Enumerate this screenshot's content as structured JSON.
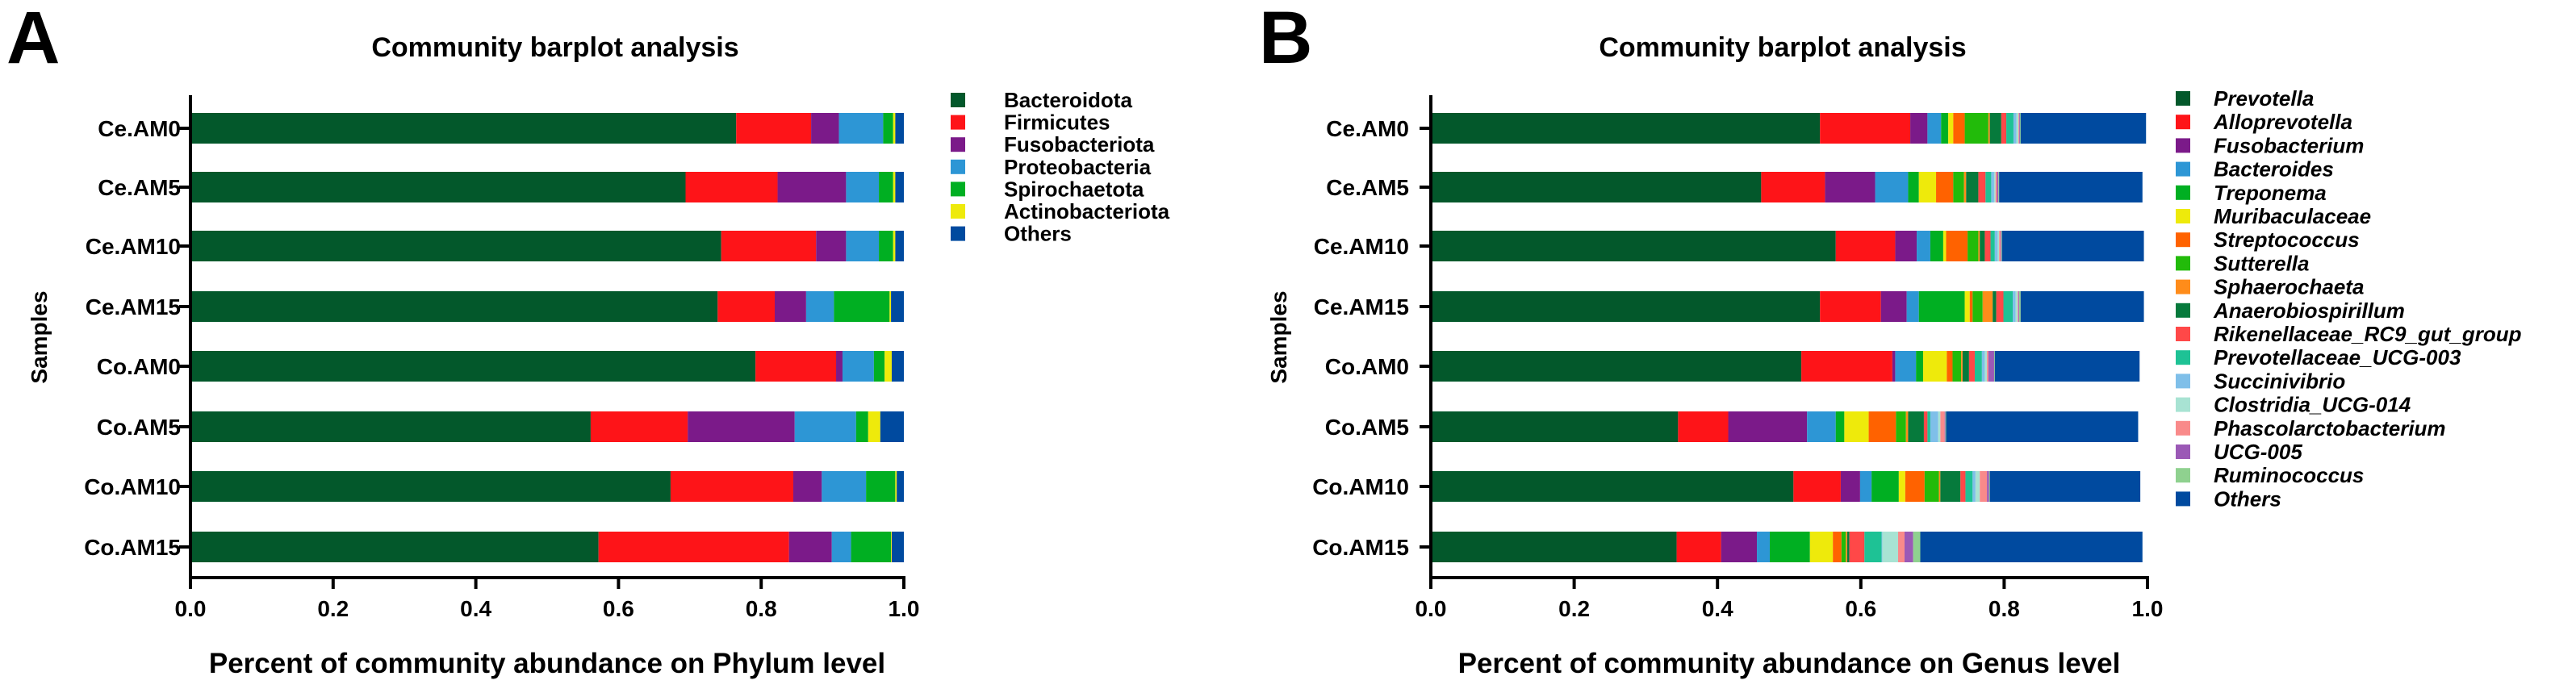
{
  "chart_data": [
    {
      "panel_label": "A",
      "type": "bar",
      "orientation": "horizontal-stacked",
      "title": "Community barplot analysis",
      "xlabel": "Percent of community abundance on Phylum level",
      "ylabel": "Samples",
      "xlim": [
        0,
        1
      ],
      "xticks": [
        "0.0",
        "0.2",
        "0.4",
        "0.6",
        "0.8",
        "1.0"
      ],
      "grid": false,
      "legend_position": "right",
      "legend_italic": false,
      "categories": [
        "Ce.AM0",
        "Ce.AM5",
        "Ce.AM10",
        "Ce.AM15",
        "Co.AM0",
        "Co.AM5",
        "Co.AM10",
        "Co.AM15"
      ],
      "series": [
        {
          "name": "Bacteroidota",
          "color": "#03582b",
          "values": [
            0.765,
            0.694,
            0.744,
            0.739,
            0.792,
            0.561,
            0.673,
            0.572
          ]
        },
        {
          "name": "Firmicutes",
          "color": "#fe1418",
          "values": [
            0.105,
            0.129,
            0.133,
            0.08,
            0.113,
            0.136,
            0.172,
            0.267
          ]
        },
        {
          "name": "Fusobacteriota",
          "color": "#7b1a89",
          "values": [
            0.039,
            0.096,
            0.042,
            0.044,
            0.009,
            0.15,
            0.04,
            0.06
          ]
        },
        {
          "name": "Proteobacteria",
          "color": "#2d96d5",
          "values": [
            0.062,
            0.046,
            0.046,
            0.039,
            0.044,
            0.086,
            0.062,
            0.027
          ]
        },
        {
          "name": "Spirochaetota",
          "color": "#00af22",
          "values": [
            0.014,
            0.02,
            0.02,
            0.078,
            0.015,
            0.017,
            0.041,
            0.056
          ]
        },
        {
          "name": "Actinobacteriota",
          "color": "#eeea0b",
          "values": [
            0.003,
            0.003,
            0.003,
            0.002,
            0.01,
            0.017,
            0.002,
            0.001
          ]
        },
        {
          "name": "Others",
          "color": "#004a9f",
          "values": [
            0.012,
            0.012,
            0.012,
            0.018,
            0.017,
            0.033,
            0.01,
            0.017
          ]
        }
      ]
    },
    {
      "panel_label": "B",
      "type": "bar",
      "orientation": "horizontal-stacked",
      "title": "Community barplot analysis",
      "xlabel": "Percent of community abundance on Genus level",
      "ylabel": "Samples",
      "xlim": [
        0,
        1
      ],
      "xticks": [
        "0.0",
        "0.2",
        "0.4",
        "0.6",
        "0.8",
        "1.0"
      ],
      "grid": false,
      "legend_position": "right",
      "legend_italic": true,
      "categories": [
        "Ce.AM0",
        "Ce.AM5",
        "Ce.AM10",
        "Ce.AM15",
        "Co.AM0",
        "Co.AM5",
        "Co.AM10",
        "Co.AM15"
      ],
      "series": [
        {
          "name": "Prevotella",
          "color": "#03582b",
          "values": [
            0.543,
            0.461,
            0.565,
            0.543,
            0.517,
            0.345,
            0.506,
            0.343
          ]
        },
        {
          "name": "Alloprevotella",
          "color": "#fe1418",
          "values": [
            0.126,
            0.089,
            0.083,
            0.085,
            0.127,
            0.07,
            0.066,
            0.062
          ]
        },
        {
          "name": "Fusobacterium",
          "color": "#7b1a89",
          "values": [
            0.024,
            0.07,
            0.03,
            0.036,
            0.004,
            0.11,
            0.027,
            0.05
          ]
        },
        {
          "name": "Bacteroides",
          "color": "#2d96d5",
          "values": [
            0.019,
            0.046,
            0.019,
            0.017,
            0.029,
            0.04,
            0.016,
            0.018
          ]
        },
        {
          "name": "Treponema",
          "color": "#00af22",
          "values": [
            0.01,
            0.015,
            0.018,
            0.064,
            0.01,
            0.012,
            0.038,
            0.056
          ]
        },
        {
          "name": "Muribaculaceae",
          "color": "#eeea0b",
          "values": [
            0.007,
            0.024,
            0.004,
            0.007,
            0.033,
            0.034,
            0.009,
            0.032
          ]
        },
        {
          "name": "Streptococcus",
          "color": "#ff6200",
          "values": [
            0.016,
            0.024,
            0.03,
            0.004,
            0.008,
            0.038,
            0.027,
            0.012
          ]
        },
        {
          "name": "Sutterella",
          "color": "#22bb0a",
          "values": [
            0.033,
            0.015,
            0.015,
            0.014,
            0.012,
            0.014,
            0.02,
            0.006
          ]
        },
        {
          "name": "Sphaerochaeta",
          "color": "#ff8c1a",
          "values": [
            0.002,
            0.003,
            0.002,
            0.014,
            0.002,
            0.003,
            0.002,
            0.002
          ]
        },
        {
          "name": "Anaerobiospirillum",
          "color": "#067a3c",
          "values": [
            0.016,
            0.017,
            0.007,
            0.005,
            0.009,
            0.022,
            0.028,
            0.003
          ]
        },
        {
          "name": "Rikenellaceae_RC9_gut_group",
          "color": "#ff4848",
          "values": [
            0.007,
            0.01,
            0.008,
            0.01,
            0.008,
            0.005,
            0.007,
            0.021
          ]
        },
        {
          "name": "Prevotellaceae_UCG-003",
          "color": "#1ec295",
          "values": [
            0.01,
            0.008,
            0.006,
            0.013,
            0.01,
            0.004,
            0.01,
            0.024
          ]
        },
        {
          "name": "Succinivibrio",
          "color": "#7fbfe9",
          "values": [
            0.004,
            0.004,
            0.004,
            0.004,
            0.004,
            0.011,
            0.004,
            0.001
          ]
        },
        {
          "name": "Clostridia_UCG-014",
          "color": "#a8e3d3",
          "values": [
            0.003,
            0.002,
            0.002,
            0.003,
            0.003,
            0.003,
            0.006,
            0.022
          ]
        },
        {
          "name": "Phascolarctobacterium",
          "color": "#f98a8a",
          "values": [
            0.001,
            0.002,
            0.002,
            0.001,
            0.002,
            0.006,
            0.01,
            0.009
          ]
        },
        {
          "name": "UCG-005",
          "color": "#9b59b6",
          "values": [
            0.001,
            0.002,
            0.001,
            0.001,
            0.008,
            0.001,
            0.003,
            0.012
          ]
        },
        {
          "name": "Ruminococcus",
          "color": "#8fd18f",
          "values": [
            0.001,
            0.001,
            0.001,
            0.002,
            0.001,
            0.001,
            0.001,
            0.01
          ]
        },
        {
          "name": "Others",
          "color": "#004a9f",
          "values": [
            0.175,
            0.2,
            0.198,
            0.172,
            0.202,
            0.268,
            0.21,
            0.31
          ]
        }
      ]
    }
  ]
}
